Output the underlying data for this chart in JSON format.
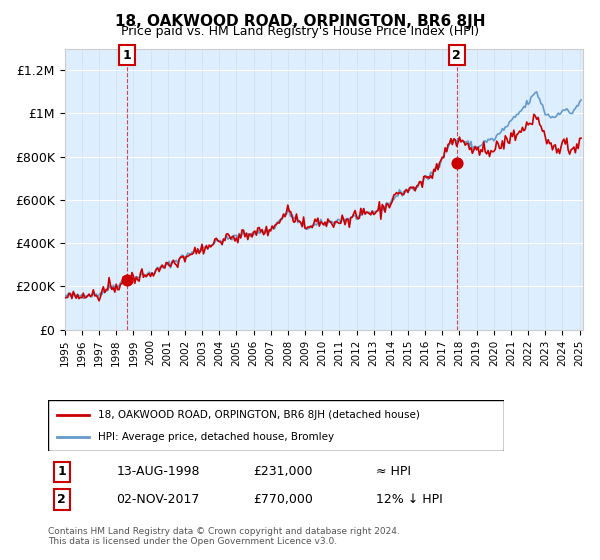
{
  "title": "18, OAKWOOD ROAD, ORPINGTON, BR6 8JH",
  "subtitle": "Price paid vs. HM Land Registry's House Price Index (HPI)",
  "legend_line1": "18, OAKWOOD ROAD, ORPINGTON, BR6 8JH (detached house)",
  "legend_line2": "HPI: Average price, detached house, Bromley",
  "footnote": "Contains HM Land Registry data © Crown copyright and database right 2024.\nThis data is licensed under the Open Government Licence v3.0.",
  "annotation1_label": "1",
  "annotation1_date": "13-AUG-1998",
  "annotation1_price": "£231,000",
  "annotation1_hpi": "≈ HPI",
  "annotation2_label": "2",
  "annotation2_date": "02-NOV-2017",
  "annotation2_price": "£770,000",
  "annotation2_hpi": "12% ↓ HPI",
  "red_color": "#cc0000",
  "blue_color": "#6699cc",
  "bg_color": "#ddeeff",
  "grid_color": "#ffffff",
  "ylim": [
    0,
    1300000
  ],
  "yticks": [
    0,
    200000,
    400000,
    600000,
    800000,
    1000000,
    1200000
  ],
  "ytick_labels": [
    "£0",
    "£200K",
    "£400K",
    "£600K",
    "£800K",
    "£1M",
    "£1.2M"
  ],
  "sale1_year": 1998.62,
  "sale1_value": 231000,
  "sale2_year": 2017.84,
  "sale2_value": 770000,
  "vline1_year": 1998.62,
  "vline2_year": 2017.84
}
